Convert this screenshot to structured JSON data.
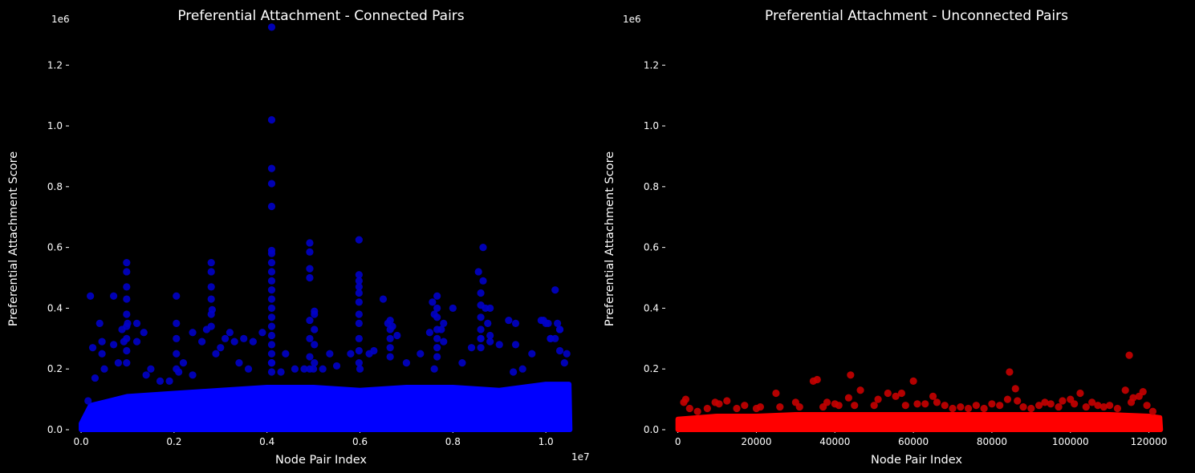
{
  "chart_data": [
    {
      "type": "scatter",
      "title": "Preferential Attachment - Connected Pairs",
      "xlabel": "Node Pair Index",
      "ylabel": "Preferential Attachment Score",
      "x_offset_label": "1e7",
      "y_offset_label": "1e6",
      "xlim": [
        -0.026,
        1.055
      ],
      "ylim": [
        0,
        1.33
      ],
      "xticks": [
        0.0,
        0.2,
        0.4,
        0.6,
        0.8,
        1.0
      ],
      "xtick_labels": [
        "0.0",
        "0.2",
        "0.4",
        "0.6",
        "0.8",
        "1.0"
      ],
      "yticks": [
        0.0,
        0.2,
        0.4,
        0.6,
        0.8,
        1.0,
        1.2
      ],
      "ytick_labels": [
        "0.0",
        "0.2",
        "0.4",
        "0.6",
        "0.8",
        "1.0",
        "1.2"
      ],
      "color": "#0000ff",
      "grid": false,
      "base_band": [
        [
          0.0,
          0.02
        ],
        [
          0.02,
          0.08
        ],
        [
          0.1,
          0.11
        ],
        [
          0.2,
          0.12
        ],
        [
          0.3,
          0.13
        ],
        [
          0.4,
          0.14
        ],
        [
          0.5,
          0.14
        ],
        [
          0.6,
          0.13
        ],
        [
          0.7,
          0.14
        ],
        [
          0.8,
          0.14
        ],
        [
          0.9,
          0.13
        ],
        [
          1.0,
          0.15
        ],
        [
          1.05,
          0.15
        ],
        [
          1.052,
          0.0
        ]
      ],
      "outliers": [
        {
          "x": 0.015,
          "y": 0.095
        },
        {
          "x": 0.03,
          "y": 0.17
        },
        {
          "x": 0.05,
          "y": 0.2
        },
        {
          "x": 0.07,
          "y": 0.28
        },
        {
          "x": 0.07,
          "y": 0.44
        },
        {
          "x": 0.08,
          "y": 0.22
        },
        {
          "x": 0.1,
          "y": 0.35
        },
        {
          "x": 0.12,
          "y": 0.29
        },
        {
          "x": 0.12,
          "y": 0.35
        },
        {
          "x": 0.14,
          "y": 0.18
        },
        {
          "x": 0.15,
          "y": 0.2
        },
        {
          "x": 0.17,
          "y": 0.16
        },
        {
          "x": 0.19,
          "y": 0.16
        },
        {
          "x": 0.21,
          "y": 0.19
        },
        {
          "x": 0.22,
          "y": 0.22
        },
        {
          "x": 0.24,
          "y": 0.18
        },
        {
          "x": 0.26,
          "y": 0.29
        },
        {
          "x": 0.27,
          "y": 0.33
        },
        {
          "x": 0.28,
          "y": 0.34
        },
        {
          "x": 0.28,
          "y": 0.38
        },
        {
          "x": 0.28,
          "y": 0.43
        },
        {
          "x": 0.28,
          "y": 0.47
        },
        {
          "x": 0.28,
          "y": 0.52
        },
        {
          "x": 0.28,
          "y": 0.55
        },
        {
          "x": 0.29,
          "y": 0.25
        },
        {
          "x": 0.3,
          "y": 0.27
        },
        {
          "x": 0.31,
          "y": 0.3
        },
        {
          "x": 0.32,
          "y": 0.32
        },
        {
          "x": 0.34,
          "y": 0.22
        },
        {
          "x": 0.36,
          "y": 0.2
        },
        {
          "x": 0.39,
          "y": 0.32
        },
        {
          "x": 0.41,
          "y": 0.22
        },
        {
          "x": 0.43,
          "y": 0.19
        },
        {
          "x": 0.46,
          "y": 0.2
        },
        {
          "x": 0.48,
          "y": 0.2
        },
        {
          "x": 0.5,
          "y": 0.2
        },
        {
          "x": 0.52,
          "y": 0.2
        },
        {
          "x": 0.55,
          "y": 0.21
        },
        {
          "x": 0.58,
          "y": 0.25
        },
        {
          "x": 0.6,
          "y": 0.2
        },
        {
          "x": 0.62,
          "y": 0.25
        },
        {
          "x": 0.65,
          "y": 0.43
        },
        {
          "x": 0.66,
          "y": 0.35
        },
        {
          "x": 0.67,
          "y": 0.34
        },
        {
          "x": 0.68,
          "y": 0.31
        },
        {
          "x": 0.7,
          "y": 0.22
        },
        {
          "x": 0.73,
          "y": 0.25
        },
        {
          "x": 0.75,
          "y": 0.32
        },
        {
          "x": 0.76,
          "y": 0.2
        },
        {
          "x": 0.78,
          "y": 0.29
        },
        {
          "x": 0.8,
          "y": 0.4
        },
        {
          "x": 0.82,
          "y": 0.22
        },
        {
          "x": 0.84,
          "y": 0.27
        },
        {
          "x": 0.86,
          "y": 0.3
        },
        {
          "x": 0.88,
          "y": 0.29
        },
        {
          "x": 0.9,
          "y": 0.28
        },
        {
          "x": 0.92,
          "y": 0.36
        },
        {
          "x": 0.93,
          "y": 0.19
        },
        {
          "x": 0.95,
          "y": 0.2
        },
        {
          "x": 0.97,
          "y": 0.25
        },
        {
          "x": 0.99,
          "y": 0.36
        },
        {
          "x": 1.0,
          "y": 0.35
        },
        {
          "x": 1.01,
          "y": 0.3
        },
        {
          "x": 1.02,
          "y": 0.46
        },
        {
          "x": 1.03,
          "y": 0.33
        },
        {
          "x": 1.04,
          "y": 0.22
        },
        {
          "x": 1.045,
          "y": 0.25
        },
        {
          "x": 0.41,
          "y": 1.325
        },
        {
          "x": 0.41,
          "y": 1.02
        },
        {
          "x": 0.41,
          "y": 0.86
        },
        {
          "x": 0.41,
          "y": 0.81
        },
        {
          "x": 0.41,
          "y": 0.735
        },
        {
          "x": 0.41,
          "y": 0.59
        },
        {
          "x": 0.41,
          "y": 0.58
        },
        {
          "x": 0.41,
          "y": 0.55
        },
        {
          "x": 0.41,
          "y": 0.52
        },
        {
          "x": 0.41,
          "y": 0.49
        },
        {
          "x": 0.41,
          "y": 0.46
        },
        {
          "x": 0.41,
          "y": 0.43
        },
        {
          "x": 0.41,
          "y": 0.4
        },
        {
          "x": 0.41,
          "y": 0.37
        },
        {
          "x": 0.41,
          "y": 0.34
        },
        {
          "x": 0.41,
          "y": 0.31
        },
        {
          "x": 0.41,
          "y": 0.28
        },
        {
          "x": 0.41,
          "y": 0.25
        },
        {
          "x": 0.41,
          "y": 0.22
        },
        {
          "x": 0.41,
          "y": 0.19
        },
        {
          "x": 0.492,
          "y": 0.615
        },
        {
          "x": 0.492,
          "y": 0.585
        },
        {
          "x": 0.492,
          "y": 0.53
        },
        {
          "x": 0.492,
          "y": 0.5
        },
        {
          "x": 0.492,
          "y": 0.36
        },
        {
          "x": 0.492,
          "y": 0.3
        },
        {
          "x": 0.492,
          "y": 0.24
        },
        {
          "x": 0.492,
          "y": 0.2
        },
        {
          "x": 0.502,
          "y": 0.39
        },
        {
          "x": 0.502,
          "y": 0.38
        },
        {
          "x": 0.502,
          "y": 0.33
        },
        {
          "x": 0.502,
          "y": 0.28
        },
        {
          "x": 0.502,
          "y": 0.22
        },
        {
          "x": 0.598,
          "y": 0.625
        },
        {
          "x": 0.598,
          "y": 0.51
        },
        {
          "x": 0.598,
          "y": 0.49
        },
        {
          "x": 0.598,
          "y": 0.47
        },
        {
          "x": 0.598,
          "y": 0.45
        },
        {
          "x": 0.598,
          "y": 0.42
        },
        {
          "x": 0.598,
          "y": 0.38
        },
        {
          "x": 0.598,
          "y": 0.35
        },
        {
          "x": 0.598,
          "y": 0.3
        },
        {
          "x": 0.598,
          "y": 0.26
        },
        {
          "x": 0.598,
          "y": 0.22
        },
        {
          "x": 0.098,
          "y": 0.55
        },
        {
          "x": 0.098,
          "y": 0.52
        },
        {
          "x": 0.098,
          "y": 0.47
        },
        {
          "x": 0.098,
          "y": 0.43
        },
        {
          "x": 0.098,
          "y": 0.38
        },
        {
          "x": 0.098,
          "y": 0.34
        },
        {
          "x": 0.098,
          "y": 0.3
        },
        {
          "x": 0.098,
          "y": 0.26
        },
        {
          "x": 0.098,
          "y": 0.22
        },
        {
          "x": 0.088,
          "y": 0.33
        },
        {
          "x": 0.092,
          "y": 0.29
        },
        {
          "x": 0.205,
          "y": 0.44
        },
        {
          "x": 0.205,
          "y": 0.35
        },
        {
          "x": 0.205,
          "y": 0.3
        },
        {
          "x": 0.205,
          "y": 0.25
        },
        {
          "x": 0.205,
          "y": 0.2
        },
        {
          "x": 0.04,
          "y": 0.35
        },
        {
          "x": 0.045,
          "y": 0.29
        },
        {
          "x": 0.045,
          "y": 0.25
        },
        {
          "x": 0.02,
          "y": 0.44
        },
        {
          "x": 0.025,
          "y": 0.27
        },
        {
          "x": 0.135,
          "y": 0.32
        },
        {
          "x": 0.24,
          "y": 0.32
        },
        {
          "x": 0.282,
          "y": 0.395
        },
        {
          "x": 0.33,
          "y": 0.29
        },
        {
          "x": 0.35,
          "y": 0.3
        },
        {
          "x": 0.37,
          "y": 0.29
        },
        {
          "x": 0.44,
          "y": 0.25
        },
        {
          "x": 0.535,
          "y": 0.25
        },
        {
          "x": 0.63,
          "y": 0.26
        },
        {
          "x": 0.665,
          "y": 0.36
        },
        {
          "x": 0.665,
          "y": 0.33
        },
        {
          "x": 0.665,
          "y": 0.3
        },
        {
          "x": 0.665,
          "y": 0.27
        },
        {
          "x": 0.665,
          "y": 0.24
        },
        {
          "x": 0.756,
          "y": 0.42
        },
        {
          "x": 0.766,
          "y": 0.44
        },
        {
          "x": 0.766,
          "y": 0.4
        },
        {
          "x": 0.766,
          "y": 0.37
        },
        {
          "x": 0.766,
          "y": 0.33
        },
        {
          "x": 0.766,
          "y": 0.3
        },
        {
          "x": 0.766,
          "y": 0.27
        },
        {
          "x": 0.766,
          "y": 0.24
        },
        {
          "x": 0.76,
          "y": 0.38
        },
        {
          "x": 0.78,
          "y": 0.35
        },
        {
          "x": 0.775,
          "y": 0.33
        },
        {
          "x": 0.855,
          "y": 0.52
        },
        {
          "x": 0.865,
          "y": 0.6
        },
        {
          "x": 0.865,
          "y": 0.49
        },
        {
          "x": 0.86,
          "y": 0.45
        },
        {
          "x": 0.86,
          "y": 0.41
        },
        {
          "x": 0.86,
          "y": 0.37
        },
        {
          "x": 0.86,
          "y": 0.33
        },
        {
          "x": 0.86,
          "y": 0.3
        },
        {
          "x": 0.86,
          "y": 0.27
        },
        {
          "x": 0.87,
          "y": 0.4
        },
        {
          "x": 0.875,
          "y": 0.35
        },
        {
          "x": 0.88,
          "y": 0.31
        },
        {
          "x": 0.935,
          "y": 0.35
        },
        {
          "x": 0.935,
          "y": 0.28
        },
        {
          "x": 0.88,
          "y": 0.4
        },
        {
          "x": 0.995,
          "y": 0.36
        },
        {
          "x": 1.005,
          "y": 0.35
        },
        {
          "x": 1.01,
          "y": 0.3
        },
        {
          "x": 1.025,
          "y": 0.35
        },
        {
          "x": 1.03,
          "y": 0.33
        },
        {
          "x": 1.02,
          "y": 0.3
        },
        {
          "x": 1.03,
          "y": 0.26
        }
      ]
    },
    {
      "type": "scatter",
      "title": "Preferential Attachment - Unconnected Pairs",
      "xlabel": "Node Pair Index",
      "ylabel": "Preferential Attachment Score",
      "x_offset_label": "",
      "y_offset_label": "1e6",
      "xlim": [
        -3200,
        125000
      ],
      "ylim": [
        0,
        1.33
      ],
      "xticks": [
        0,
        20000,
        40000,
        60000,
        80000,
        100000,
        120000
      ],
      "xtick_labels": [
        "0",
        "20000",
        "40000",
        "60000",
        "80000",
        "100000",
        "120000"
      ],
      "yticks": [
        0.0,
        0.2,
        0.4,
        0.6,
        0.8,
        1.0,
        1.2
      ],
      "ytick_labels": [
        "0.0",
        "0.2",
        "0.4",
        "0.6",
        "0.8",
        "1.0",
        "1.2"
      ],
      "color": "#ff0000",
      "grid": false,
      "base_band": [
        [
          0,
          0.035
        ],
        [
          10000,
          0.045
        ],
        [
          20000,
          0.045
        ],
        [
          30000,
          0.05
        ],
        [
          40000,
          0.05
        ],
        [
          50000,
          0.05
        ],
        [
          60000,
          0.05
        ],
        [
          70000,
          0.05
        ],
        [
          80000,
          0.05
        ],
        [
          90000,
          0.05
        ],
        [
          100000,
          0.05
        ],
        [
          110000,
          0.05
        ],
        [
          120000,
          0.045
        ],
        [
          122800,
          0.04
        ],
        [
          123000,
          0.0
        ]
      ],
      "outliers": [
        {
          "x": 1500,
          "y": 0.09
        },
        {
          "x": 2000,
          "y": 0.1
        },
        {
          "x": 3000,
          "y": 0.07
        },
        {
          "x": 5000,
          "y": 0.06
        },
        {
          "x": 7500,
          "y": 0.07
        },
        {
          "x": 9500,
          "y": 0.09
        },
        {
          "x": 10500,
          "y": 0.085
        },
        {
          "x": 12500,
          "y": 0.095
        },
        {
          "x": 15000,
          "y": 0.07
        },
        {
          "x": 17000,
          "y": 0.08
        },
        {
          "x": 20000,
          "y": 0.07
        },
        {
          "x": 21000,
          "y": 0.075
        },
        {
          "x": 25000,
          "y": 0.12
        },
        {
          "x": 26000,
          "y": 0.075
        },
        {
          "x": 30000,
          "y": 0.09
        },
        {
          "x": 31000,
          "y": 0.075
        },
        {
          "x": 34500,
          "y": 0.16
        },
        {
          "x": 35500,
          "y": 0.165
        },
        {
          "x": 37000,
          "y": 0.075
        },
        {
          "x": 38000,
          "y": 0.09
        },
        {
          "x": 40000,
          "y": 0.085
        },
        {
          "x": 41000,
          "y": 0.08
        },
        {
          "x": 43500,
          "y": 0.105
        },
        {
          "x": 44000,
          "y": 0.18
        },
        {
          "x": 45000,
          "y": 0.08
        },
        {
          "x": 46500,
          "y": 0.13
        },
        {
          "x": 50000,
          "y": 0.08
        },
        {
          "x": 51000,
          "y": 0.1
        },
        {
          "x": 53500,
          "y": 0.12
        },
        {
          "x": 55500,
          "y": 0.11
        },
        {
          "x": 57000,
          "y": 0.12
        },
        {
          "x": 58000,
          "y": 0.08
        },
        {
          "x": 60000,
          "y": 0.16
        },
        {
          "x": 61000,
          "y": 0.085
        },
        {
          "x": 63000,
          "y": 0.085
        },
        {
          "x": 65000,
          "y": 0.11
        },
        {
          "x": 66000,
          "y": 0.09
        },
        {
          "x": 68000,
          "y": 0.08
        },
        {
          "x": 70000,
          "y": 0.07
        },
        {
          "x": 72000,
          "y": 0.075
        },
        {
          "x": 74000,
          "y": 0.07
        },
        {
          "x": 76000,
          "y": 0.08
        },
        {
          "x": 78000,
          "y": 0.07
        },
        {
          "x": 80000,
          "y": 0.085
        },
        {
          "x": 82000,
          "y": 0.08
        },
        {
          "x": 84000,
          "y": 0.1
        },
        {
          "x": 84500,
          "y": 0.19
        },
        {
          "x": 86000,
          "y": 0.135
        },
        {
          "x": 86500,
          "y": 0.095
        },
        {
          "x": 88000,
          "y": 0.075
        },
        {
          "x": 90000,
          "y": 0.07
        },
        {
          "x": 92000,
          "y": 0.08
        },
        {
          "x": 93500,
          "y": 0.09
        },
        {
          "x": 95000,
          "y": 0.085
        },
        {
          "x": 97000,
          "y": 0.075
        },
        {
          "x": 98000,
          "y": 0.095
        },
        {
          "x": 100000,
          "y": 0.1
        },
        {
          "x": 101000,
          "y": 0.085
        },
        {
          "x": 102500,
          "y": 0.12
        },
        {
          "x": 104000,
          "y": 0.075
        },
        {
          "x": 105500,
          "y": 0.09
        },
        {
          "x": 107000,
          "y": 0.08
        },
        {
          "x": 108500,
          "y": 0.075
        },
        {
          "x": 110000,
          "y": 0.08
        },
        {
          "x": 112000,
          "y": 0.07
        },
        {
          "x": 114000,
          "y": 0.13
        },
        {
          "x": 115000,
          "y": 0.245
        },
        {
          "x": 115500,
          "y": 0.09
        },
        {
          "x": 116000,
          "y": 0.105
        },
        {
          "x": 117500,
          "y": 0.11
        },
        {
          "x": 118500,
          "y": 0.125
        },
        {
          "x": 119500,
          "y": 0.08
        },
        {
          "x": 121000,
          "y": 0.06
        }
      ]
    }
  ]
}
